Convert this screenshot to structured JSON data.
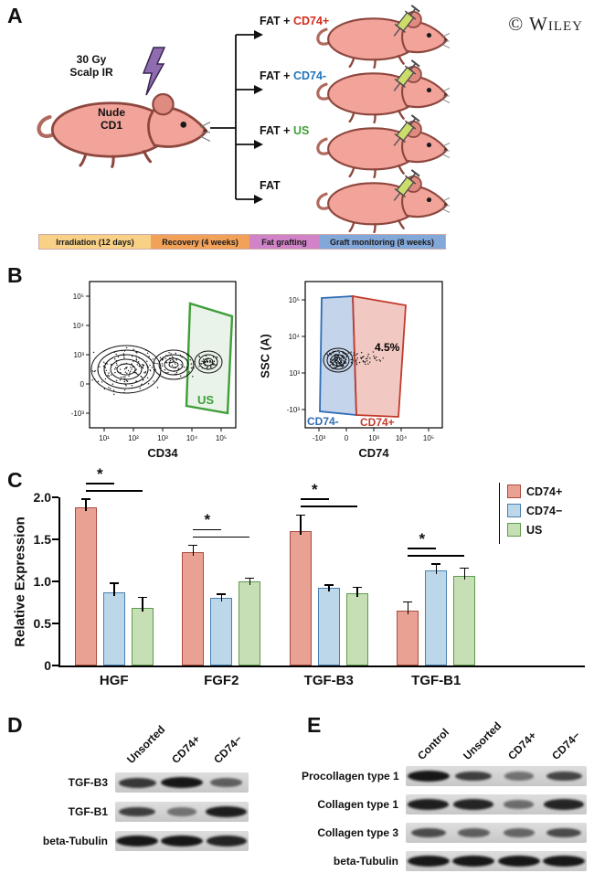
{
  "copyright": "© Wiley",
  "panelA": {
    "label": "A",
    "irradiation_label": "30 Gy\nScalp IR",
    "mouse_label": "Nude\nCD1",
    "branches": [
      {
        "prefix": "FAT + ",
        "tag": "CD74+",
        "color": "#d42a1d"
      },
      {
        "prefix": "FAT + ",
        "tag": "CD74-",
        "color": "#2273ba"
      },
      {
        "prefix": "FAT + ",
        "tag": "US",
        "color": "#3f9e38"
      },
      {
        "prefix": "FAT",
        "tag": "",
        "color": "#000000"
      }
    ],
    "timeline": [
      {
        "label": "Irradiation (12 days)",
        "color": "#f9d186"
      },
      {
        "label": "Recovery (4 weeks)",
        "color": "#f2a159"
      },
      {
        "label": "Fat grafting",
        "color": "#d083c7"
      },
      {
        "label": "Graft monitoring (8 weeks)",
        "color": "#82a7d9"
      }
    ]
  },
  "panelB": {
    "label": "B",
    "left_plot": {
      "xlabel": "CD34",
      "gate_label": "US",
      "gate_color": "#3f9e38",
      "xticks": [
        "10¹",
        "10²",
        "10³",
        "10⁴",
        "10⁵"
      ],
      "yticks": [
        "10⁵",
        "10⁴",
        "10³",
        "0",
        "-10³"
      ]
    },
    "right_plot": {
      "xlabel": "CD74",
      "ylabel": "SSC (A)",
      "percent_label": "4.5%",
      "neg_gate_label": "CD74-",
      "neg_gate_color": "#2f6db5",
      "pos_gate_label": "CD74+",
      "pos_gate_color": "#c23b2c",
      "xticks": [
        "-10³",
        "0",
        "10³",
        "10⁴",
        "10⁵"
      ],
      "yticks": [
        "10⁵",
        "10⁴",
        "10³",
        "-10³"
      ]
    }
  },
  "panelC": {
    "label": "C",
    "chart_data": {
      "type": "bar",
      "categories": [
        "HGF",
        "FGF2",
        "TGF-B3",
        "TGF-B1"
      ],
      "series": [
        {
          "name": "CD74+",
          "color": "#e8a193",
          "border": "#a94b3f",
          "values": [
            1.88,
            1.35,
            1.6,
            0.65
          ],
          "errors": [
            0.09,
            0.07,
            0.18,
            0.1
          ]
        },
        {
          "name": "CD74−",
          "color": "#bdd7ea",
          "border": "#4a7fae",
          "values": [
            0.87,
            0.8,
            0.92,
            1.13
          ],
          "errors": [
            0.1,
            0.04,
            0.03,
            0.07
          ]
        },
        {
          "name": "US",
          "color": "#c6dfb5",
          "border": "#5f9a4e",
          "values": [
            0.68,
            1.0,
            0.86,
            1.07
          ],
          "errors": [
            0.12,
            0.03,
            0.06,
            0.08
          ]
        }
      ],
      "ylabel": "Relative Expression",
      "ylim": [
        0,
        2.0
      ],
      "yticks": [
        "0",
        "0.5",
        "1.0",
        "1.5",
        "2.0"
      ],
      "significance": [
        "*",
        "*",
        "*",
        "*"
      ],
      "legend_position": "top-right",
      "grid": false
    }
  },
  "panelD": {
    "label": "D",
    "columns": [
      "Unsorted",
      "CD74+",
      "CD74−"
    ],
    "rows": [
      {
        "name": "TGF-B3",
        "bands": [
          0.75,
          1.0,
          0.45
        ]
      },
      {
        "name": "TGF-B1",
        "bands": [
          0.7,
          0.3,
          0.95
        ]
      },
      {
        "name": "beta-Tubulin",
        "bands": [
          1.0,
          1.0,
          0.9
        ]
      }
    ]
  },
  "panelE": {
    "label": "E",
    "columns": [
      "Control",
      "Unsorted",
      "CD74+",
      "CD74−"
    ],
    "rows": [
      {
        "name": "Procollagen type 1",
        "bands": [
          1.0,
          0.7,
          0.3,
          0.65
        ]
      },
      {
        "name": "Collagen type 1",
        "bands": [
          0.95,
          0.9,
          0.35,
          0.9
        ]
      },
      {
        "name": "Collagen type 3",
        "bands": [
          0.6,
          0.45,
          0.4,
          0.6
        ]
      },
      {
        "name": "beta-Tubulin",
        "bands": [
          1.0,
          1.0,
          1.0,
          1.0
        ]
      }
    ]
  }
}
